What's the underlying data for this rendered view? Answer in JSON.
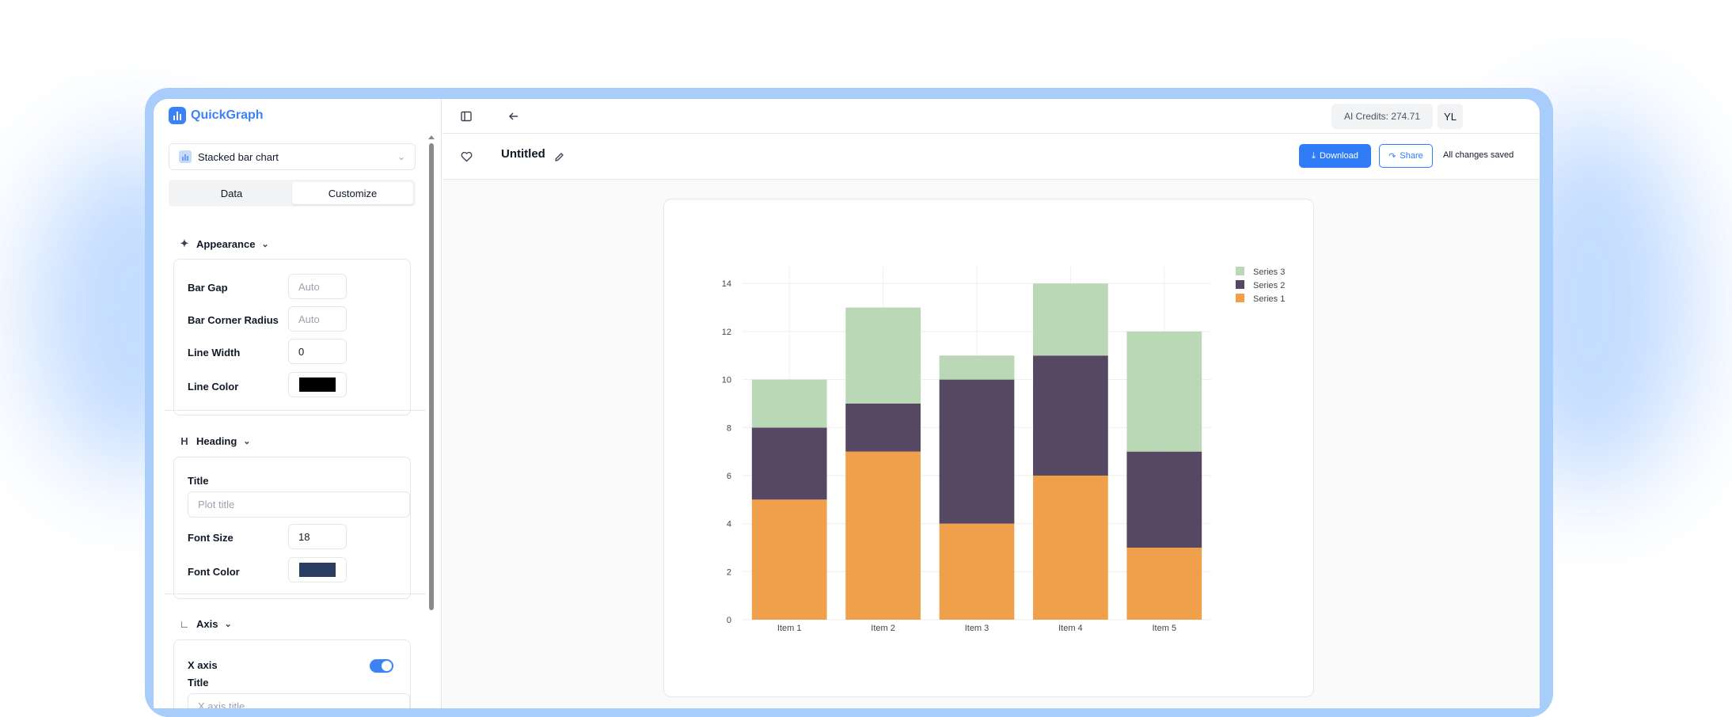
{
  "app": {
    "name": "QuickGraph"
  },
  "sidebar": {
    "chart_type": "Stacked bar chart",
    "tabs": [
      {
        "label": "Data"
      },
      {
        "label": "Customize"
      }
    ],
    "appearance": {
      "heading": "Appearance",
      "bar_gap": {
        "label": "Bar Gap",
        "placeholder": "Auto"
      },
      "bar_corner_radius": {
        "label": "Bar Corner Radius",
        "placeholder": "Auto"
      },
      "line_width": {
        "label": "Line Width",
        "value": "0"
      },
      "line_color": {
        "label": "Line Color",
        "value": "#000000"
      }
    },
    "heading_section": {
      "heading": "Heading",
      "title": {
        "label": "Title",
        "placeholder": "Plot title"
      },
      "font_size": {
        "label": "Font Size",
        "value": "18"
      },
      "font_color": {
        "label": "Font Color",
        "value": "#2a3f5f"
      }
    },
    "axis": {
      "heading": "Axis",
      "x_axis": {
        "label": "X axis",
        "enabled": true
      },
      "title": {
        "label": "Title",
        "placeholder": "X axis title"
      }
    }
  },
  "header": {
    "credits": "AI Credits: 274.71",
    "avatar": "YL"
  },
  "toolbar": {
    "title": "Untitled",
    "download_label": "Download",
    "share_label": "Share",
    "status": "All changes saved"
  },
  "chart_data": {
    "type": "bar",
    "stacked": true,
    "categories": [
      "Item 1",
      "Item 2",
      "Item 3",
      "Item 4",
      "Item 5"
    ],
    "series": [
      {
        "name": "Series 1",
        "values": [
          5,
          7,
          4,
          6,
          3
        ],
        "color": "#f09f4b"
      },
      {
        "name": "Series 2",
        "values": [
          3,
          2,
          6,
          5,
          4
        ],
        "color": "#564862"
      },
      {
        "name": "Series 3",
        "values": [
          2,
          4,
          1,
          3,
          5
        ],
        "color": "#bbd8b6"
      }
    ],
    "yticks": [
      0,
      2,
      4,
      6,
      8,
      10,
      12,
      14
    ],
    "ylim": [
      0,
      14.7
    ],
    "title": "",
    "xlabel": "",
    "ylabel": "",
    "grid": true,
    "legend": "top-right"
  }
}
